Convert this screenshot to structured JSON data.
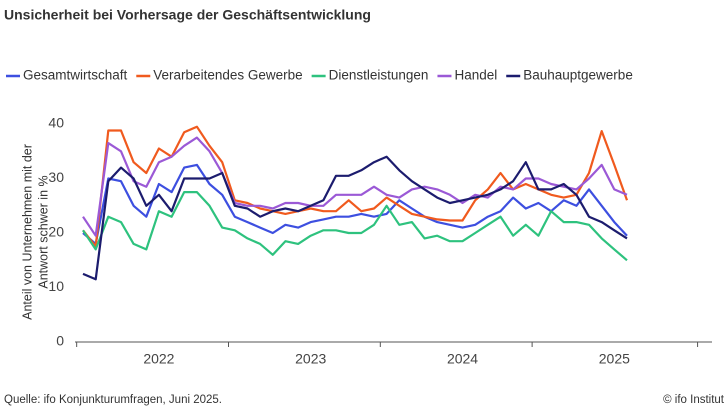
{
  "chart_data": {
    "type": "line",
    "title": "Unsicherheit bei Vorhersage der Geschäftsentwicklung",
    "y_label": [
      "Anteil von Unternehmen mit der",
      "Antwort schwer in %"
    ],
    "source": "Quelle: ifo Konjunkturumfragen, Juni 2025.",
    "credit": "© ifo Institut",
    "categories": [
      null,
      null,
      null,
      null,
      null,
      null,
      "2022",
      null,
      null,
      null,
      null,
      null,
      null,
      null,
      null,
      null,
      null,
      null,
      "2023",
      null,
      null,
      null,
      null,
      null,
      null,
      null,
      null,
      null,
      null,
      null,
      "2024",
      null,
      null,
      null,
      null,
      null,
      null,
      null,
      null,
      null,
      null,
      null,
      "2025",
      null
    ],
    "ylim": [
      0,
      42
    ],
    "yticks": [
      0,
      10,
      20,
      30,
      40
    ],
    "grid": false,
    "series": [
      {
        "name": "Gesamtwirtschaft",
        "color": "#3d4fe0",
        "values": [
          20,
          18,
          30,
          29.5,
          25,
          23,
          29,
          27.5,
          32,
          32.5,
          29,
          27,
          23,
          22,
          21,
          20,
          21.5,
          21,
          22,
          22.5,
          23,
          23,
          23.5,
          23,
          23.5,
          26,
          24.5,
          23,
          22,
          21.5,
          21,
          21.5,
          23,
          24,
          26.5,
          24.5,
          25.5,
          24,
          26,
          25,
          28,
          25,
          22,
          19.5
        ]
      },
      {
        "name": "Verarbeitendes Gewerbe",
        "color": "#f05a1e",
        "values": [
          20.5,
          17.5,
          38.8,
          38.8,
          33,
          31,
          35.5,
          34,
          38.5,
          39.5,
          36,
          33,
          26,
          25.5,
          24.5,
          24,
          23.5,
          24,
          24.5,
          24,
          24,
          26,
          24,
          24.5,
          26.5,
          25,
          23.5,
          23,
          22.5,
          22.3,
          22.3,
          26,
          28,
          31,
          28,
          29,
          28,
          27,
          26.5,
          27,
          31,
          38.7,
          32.5,
          26
        ]
      },
      {
        "name": "Dienstleistungen",
        "color": "#2ec27e",
        "values": [
          20.5,
          17,
          23,
          22,
          18,
          17,
          24,
          23,
          27.5,
          27.5,
          25,
          21,
          20.5,
          19,
          18,
          16,
          18.5,
          18,
          19.5,
          20.5,
          20.5,
          20,
          20,
          21.5,
          25,
          21.5,
          22,
          19,
          19.5,
          18.5,
          18.5,
          20,
          21.5,
          23,
          19.5,
          21.5,
          19.5,
          24,
          22,
          22,
          21.5,
          19,
          17,
          15
        ]
      },
      {
        "name": "Handel",
        "color": "#9b59d6",
        "values": [
          23,
          19.5,
          36.5,
          35,
          29.5,
          28.5,
          33,
          34,
          36,
          37.5,
          35,
          31,
          25.5,
          25,
          25,
          24.5,
          25.5,
          25.5,
          25,
          25,
          27,
          27,
          27,
          28.5,
          27,
          26.5,
          28,
          28.5,
          28,
          27,
          25.5,
          27,
          26.5,
          28.5,
          28,
          30,
          30,
          29,
          28.5,
          28,
          30,
          32.5,
          28,
          27
        ]
      },
      {
        "name": "Bauhauptgewerbe",
        "color": "#1c1c6e",
        "values": [
          12.5,
          11.5,
          29.5,
          32,
          30,
          25,
          27,
          24,
          30,
          30,
          30,
          31,
          25,
          24.5,
          23,
          24,
          24.5,
          24,
          25,
          26,
          30.5,
          30.5,
          31.5,
          33,
          34,
          31.5,
          29.5,
          28,
          26.5,
          25.5,
          26,
          26.5,
          27,
          28,
          29.5,
          33,
          28,
          28,
          29,
          27,
          23,
          22,
          20.5,
          19
        ]
      }
    ]
  }
}
